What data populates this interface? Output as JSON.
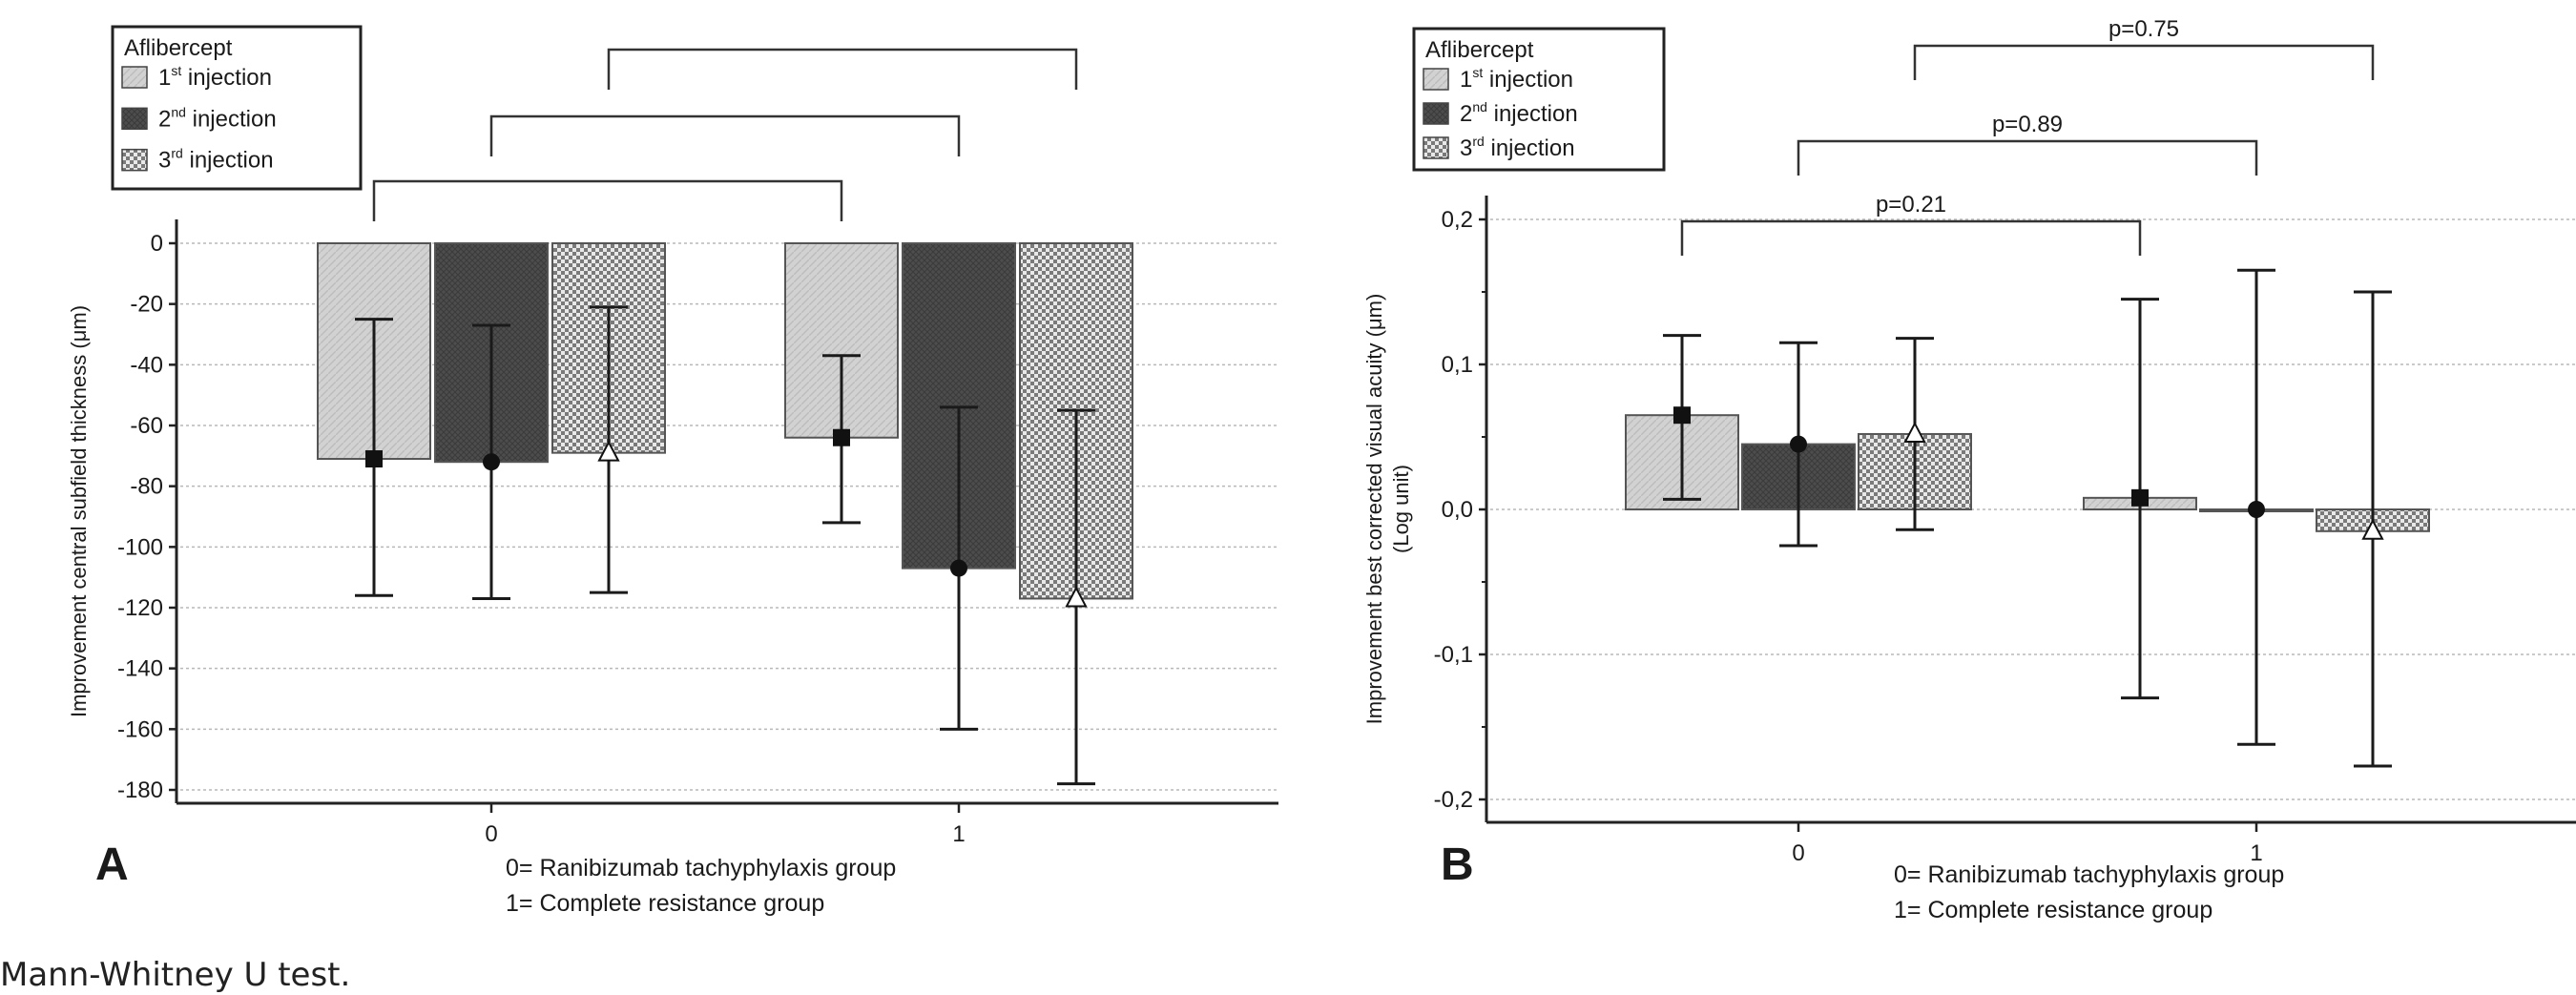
{
  "footnote": "Mann-Whitney U test.",
  "chart_data": [
    {
      "panel_label": "A",
      "type": "bar",
      "legend_title": "Aflibercept",
      "series": [
        {
          "name": "1st injection",
          "ord": "st",
          "values": [
            -71,
            -64
          ],
          "err_low": [
            -116,
            -92
          ],
          "err_high": [
            -25,
            -37
          ],
          "pattern": "light",
          "marker": "square"
        },
        {
          "name": "2nd injection",
          "ord": "nd",
          "values": [
            -72,
            -107
          ],
          "err_low": [
            -117,
            -160
          ],
          "err_high": [
            -27,
            -54
          ],
          "pattern": "dark",
          "marker": "circle"
        },
        {
          "name": "3rd injection",
          "ord": "rd",
          "values": [
            -69,
            -117
          ],
          "err_low": [
            -115,
            -178
          ],
          "err_high": [
            -21,
            -55
          ],
          "pattern": "check",
          "marker": "triangle"
        }
      ],
      "categories": [
        "0",
        "1"
      ],
      "ylabel": "Improvement central subfield thickness (μm)",
      "ylim": [
        -180,
        0
      ],
      "yticks": [
        0,
        -20,
        -40,
        -60,
        -80,
        -100,
        -120,
        -140,
        -160,
        -180
      ],
      "ytick_labels": [
        "0",
        "-20",
        "-40",
        "-60",
        "-80",
        "-100",
        "-120",
        "-140",
        "-160",
        "-180"
      ],
      "xnote": [
        "0= Ranibizumab tachyphylaxis group",
        "1= Complete resistance group"
      ],
      "brackets": [
        {
          "series": 0,
          "label": ""
        },
        {
          "series": 1,
          "label": ""
        },
        {
          "series": 2,
          "label": ""
        }
      ]
    },
    {
      "panel_label": "B",
      "type": "bar",
      "legend_title": "Aflibercept",
      "series": [
        {
          "name": "1st injection",
          "ord": "st",
          "values": [
            0.065,
            0.008
          ],
          "err_low": [
            0.007,
            -0.13
          ],
          "err_high": [
            0.12,
            0.145
          ],
          "pattern": "light",
          "marker": "square"
        },
        {
          "name": "2nd injection",
          "ord": "nd",
          "values": [
            0.045,
            0.0
          ],
          "err_low": [
            -0.025,
            -0.162
          ],
          "err_high": [
            0.115,
            0.165
          ],
          "pattern": "dark",
          "marker": "circle"
        },
        {
          "name": "3rd injection",
          "ord": "rd",
          "values": [
            0.052,
            -0.015
          ],
          "err_low": [
            -0.014,
            -0.177
          ],
          "err_high": [
            0.118,
            0.15
          ],
          "pattern": "check",
          "marker": "triangle"
        }
      ],
      "categories": [
        "0",
        "1"
      ],
      "ylabel_lines": [
        "Improvement best corrected visual acuity (μm)",
        "(Log unit)"
      ],
      "ylim": [
        -0.2,
        0.2
      ],
      "yticks": [
        0.2,
        0.1,
        0.0,
        -0.1,
        -0.2
      ],
      "ytick_labels": [
        "0,2",
        "0,1",
        "0,0",
        "-0,1",
        "-0,2"
      ],
      "xnote": [
        "0= Ranibizumab tachyphylaxis group",
        "1= Complete resistance group"
      ],
      "brackets": [
        {
          "series": 0,
          "label": "p=0.21"
        },
        {
          "series": 1,
          "label": "p=0.89"
        },
        {
          "series": 2,
          "label": "p=0.75"
        }
      ]
    }
  ]
}
